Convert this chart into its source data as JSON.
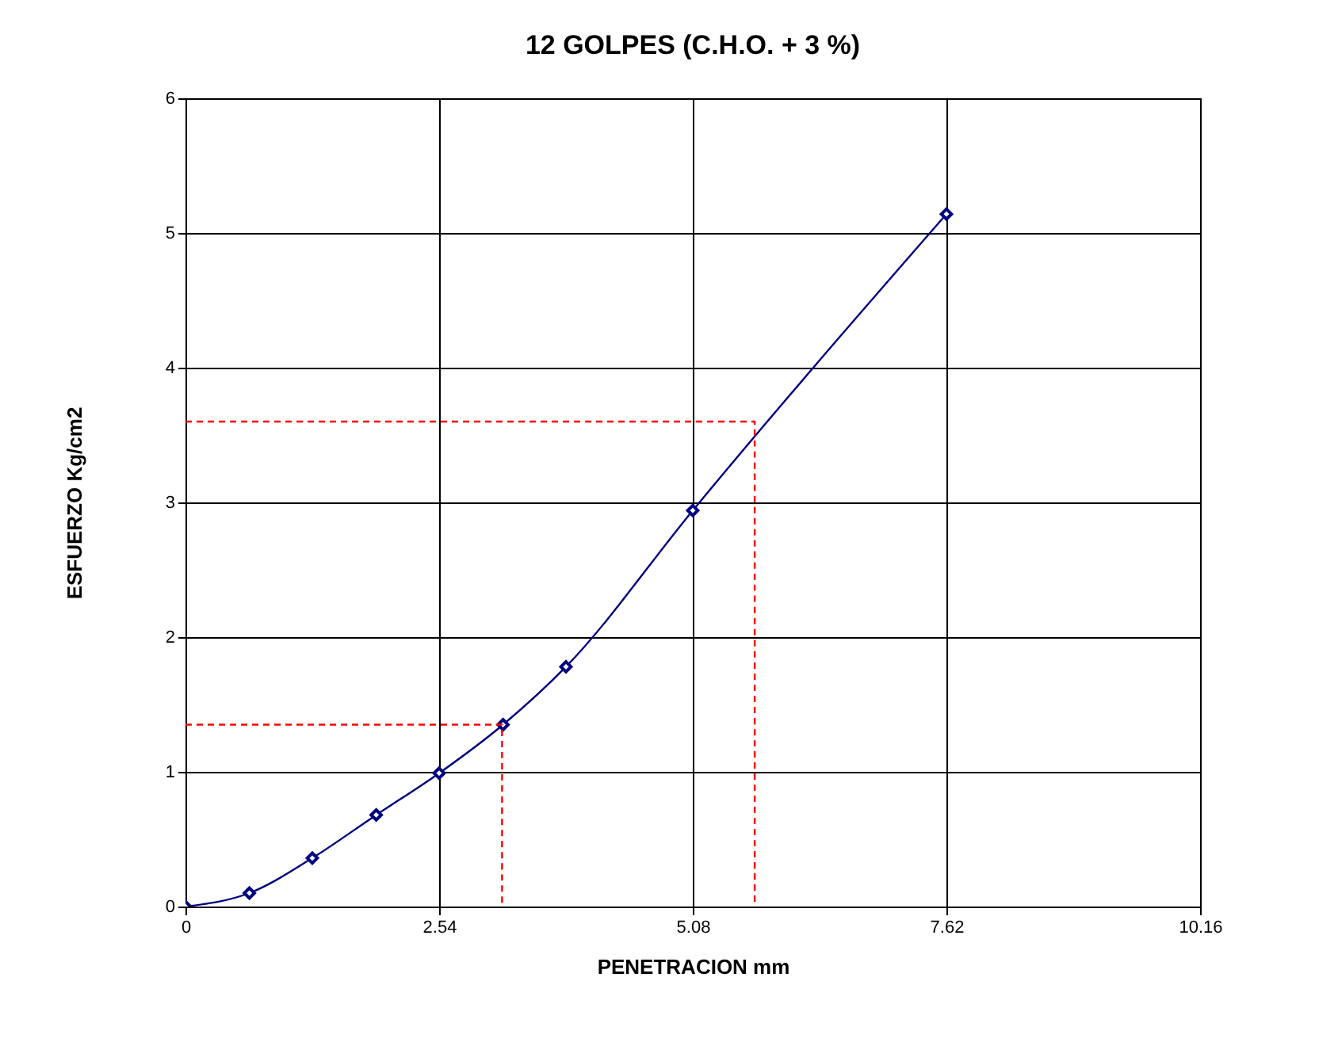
{
  "chart_data": {
    "type": "line",
    "title": "12 GOLPES (C.H.O. + 3 %)",
    "xlabel": "PENETRACION mm",
    "ylabel": "ESFUERZO Kg/cm2",
    "xlim": [
      0,
      10.16
    ],
    "xticks": [
      0,
      2.54,
      5.08,
      7.62,
      10.16
    ],
    "ylim": [
      0,
      6
    ],
    "yticks": [
      0,
      1,
      2,
      3,
      4,
      5,
      6
    ],
    "grid": true,
    "marker": "diamond",
    "line_style": "solid",
    "series": [
      {
        "color": "#000080",
        "x": [
          0,
          0.64,
          1.27,
          1.91,
          2.54,
          3.18,
          3.81,
          5.08,
          7.62
        ],
        "values": [
          0,
          0.1,
          0.36,
          0.68,
          0.99,
          1.35,
          1.78,
          2.94,
          5.14
        ]
      },
      {
        "color": "#ff0000",
        "marker": "none",
        "line_style": "dashed",
        "x": [
          0,
          3.17,
          3.17
        ],
        "values": [
          1.35,
          1.35,
          0
        ]
      },
      {
        "color": "#ff0000",
        "marker": "none",
        "line_style": "dashed",
        "x": [
          0,
          5.7,
          5.7
        ],
        "values": [
          3.6,
          3.6,
          0
        ]
      }
    ]
  }
}
